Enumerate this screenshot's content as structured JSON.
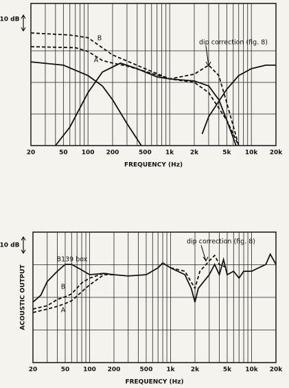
{
  "chart_data": [
    {
      "type": "line",
      "x_log": true,
      "xlim": [
        20,
        20000
      ],
      "ylim": [
        0,
        90
      ],
      "xlabel": "FREQUENCY (Hz)",
      "xticks": [
        20,
        50,
        100,
        200,
        500,
        {
          "value": 1000,
          "label": "1k"
        },
        {
          "value": 2000,
          "label": "2k"
        },
        {
          "value": 5000,
          "label": "5k"
        },
        {
          "value": 10000,
          "label": "10k"
        },
        {
          "value": 20000,
          "label": "20k"
        }
      ],
      "xgrid": [
        20,
        30,
        40,
        50,
        60,
        70,
        80,
        90,
        100,
        200,
        300,
        400,
        500,
        600,
        700,
        800,
        900,
        1000,
        2000,
        3000,
        4000,
        5000,
        6000,
        7000,
        8000,
        9000,
        10000,
        20000
      ],
      "ygrid": [
        20,
        40,
        60
      ],
      "scale_bar": {
        "label": "10 dB",
        "value": 10
      },
      "annotations": [
        "B",
        "A",
        "dip correction (fig. 8)"
      ],
      "series": [
        {
          "color": "#111",
          "dash": true,
          "x": [
            20,
            60,
            100,
            200,
            500,
            1000,
            2000,
            3000,
            4000,
            5000,
            7000
          ],
          "values": [
            71.3,
            70,
            68.3,
            57.4,
            48.7,
            42.2,
            45.2,
            50.9,
            44.3,
            27,
            0
          ]
        },
        {
          "color": "#111",
          "dash": true,
          "x": [
            20,
            70,
            100,
            150,
            200,
            300,
            500,
            1000,
            2000,
            3000,
            5000,
            7000
          ],
          "values": [
            62.6,
            62,
            59.6,
            53.9,
            52.2,
            50.4,
            47,
            42.2,
            40,
            33.5,
            16,
            0
          ]
        },
        {
          "color": "#111",
          "dash": false,
          "x": [
            20,
            50,
            100,
            150,
            200,
            300,
            450
          ],
          "values": [
            53,
            50.9,
            44.3,
            37.8,
            29,
            13.9,
            0
          ]
        },
        {
          "color": "#111",
          "dash": false,
          "x": [
            40,
            60,
            100,
            150,
            250,
            400,
            700,
            1000,
            2000,
            3000,
            4000,
            5000,
            6500
          ],
          "values": [
            0,
            11.7,
            33.5,
            46.5,
            52.2,
            48.7,
            43.5,
            42.2,
            40.9,
            37.8,
            29,
            16,
            0
          ]
        },
        {
          "color": "#111",
          "dash": false,
          "x": [
            2500,
            3000,
            5000,
            7000,
            10000,
            15000,
            20000
          ],
          "values": [
            7.4,
            18.3,
            35.7,
            44.3,
            48.7,
            50.9,
            50.9
          ]
        }
      ]
    },
    {
      "type": "line",
      "x_log": true,
      "xlim": [
        20,
        20000
      ],
      "ylim": [
        0,
        80
      ],
      "xlabel": "FREQUENCY (Hz)",
      "ylabel": "ACOUSTIC OUTPUT",
      "xticks": [
        20,
        50,
        100,
        200,
        500,
        {
          "value": 1000,
          "label": "1k"
        },
        {
          "value": 2000,
          "label": "2k"
        },
        {
          "value": 5000,
          "label": "5k"
        },
        {
          "value": 10000,
          "label": "10k"
        },
        {
          "value": 20000,
          "label": "20k"
        }
      ],
      "xgrid": [
        20,
        30,
        40,
        50,
        60,
        70,
        80,
        90,
        100,
        200,
        300,
        400,
        500,
        600,
        700,
        800,
        900,
        1000,
        2000,
        3000,
        4000,
        5000,
        6000,
        7000,
        8000,
        9000,
        10000,
        20000
      ],
      "ygrid": [
        20,
        40,
        60
      ],
      "scale_bar": {
        "label": "10 dB",
        "value": 10
      },
      "annotations": [
        "B139 box",
        "B",
        "A",
        "dip correction (fig. 8)"
      ],
      "series": [
        {
          "color": "#111",
          "dash": false,
          "x": [
            20,
            25,
            30,
            40,
            50,
            60,
            80,
            100,
            150,
            200,
            300,
            500,
            700,
            800,
            1000,
            1500,
            1800,
            2000,
            2200,
            3000,
            3500,
            4000,
            4500,
            5000,
            6000,
            7000,
            8000,
            10000,
            15000,
            17000,
            20000
          ],
          "values": [
            37.1,
            41.3,
            49.7,
            56,
            60.2,
            60.2,
            56.8,
            53.9,
            54.7,
            53.9,
            53.1,
            53.9,
            58.1,
            61.1,
            58.1,
            53.9,
            45.5,
            37.1,
            45.5,
            53.9,
            60.2,
            53.9,
            63.2,
            53.9,
            56,
            51.8,
            56,
            56,
            60.2,
            66.5,
            60.2
          ]
        },
        {
          "color": "#111",
          "dash": true,
          "x": [
            20,
            30,
            40,
            50,
            60,
            80,
            100,
            150,
            200
          ],
          "values": [
            32.8,
            34.9,
            38.7,
            40.4,
            42.1,
            48.8,
            51.8,
            54.7,
            53.9
          ]
        },
        {
          "color": "#111",
          "dash": true,
          "x": [
            20,
            30,
            40,
            50,
            60,
            80,
            100,
            150,
            200
          ],
          "values": [
            30.7,
            32.8,
            34.5,
            36.2,
            37.9,
            43.4,
            47.6,
            53.9,
            53.9
          ]
        },
        {
          "color": "#111",
          "dash": true,
          "x": [
            1000,
            1500,
            2000,
            2300,
            3000,
            3500,
            4000,
            5000
          ],
          "values": [
            58.1,
            56,
            45.5,
            56,
            62.3,
            65.7,
            60.2,
            58.1
          ]
        }
      ]
    }
  ]
}
